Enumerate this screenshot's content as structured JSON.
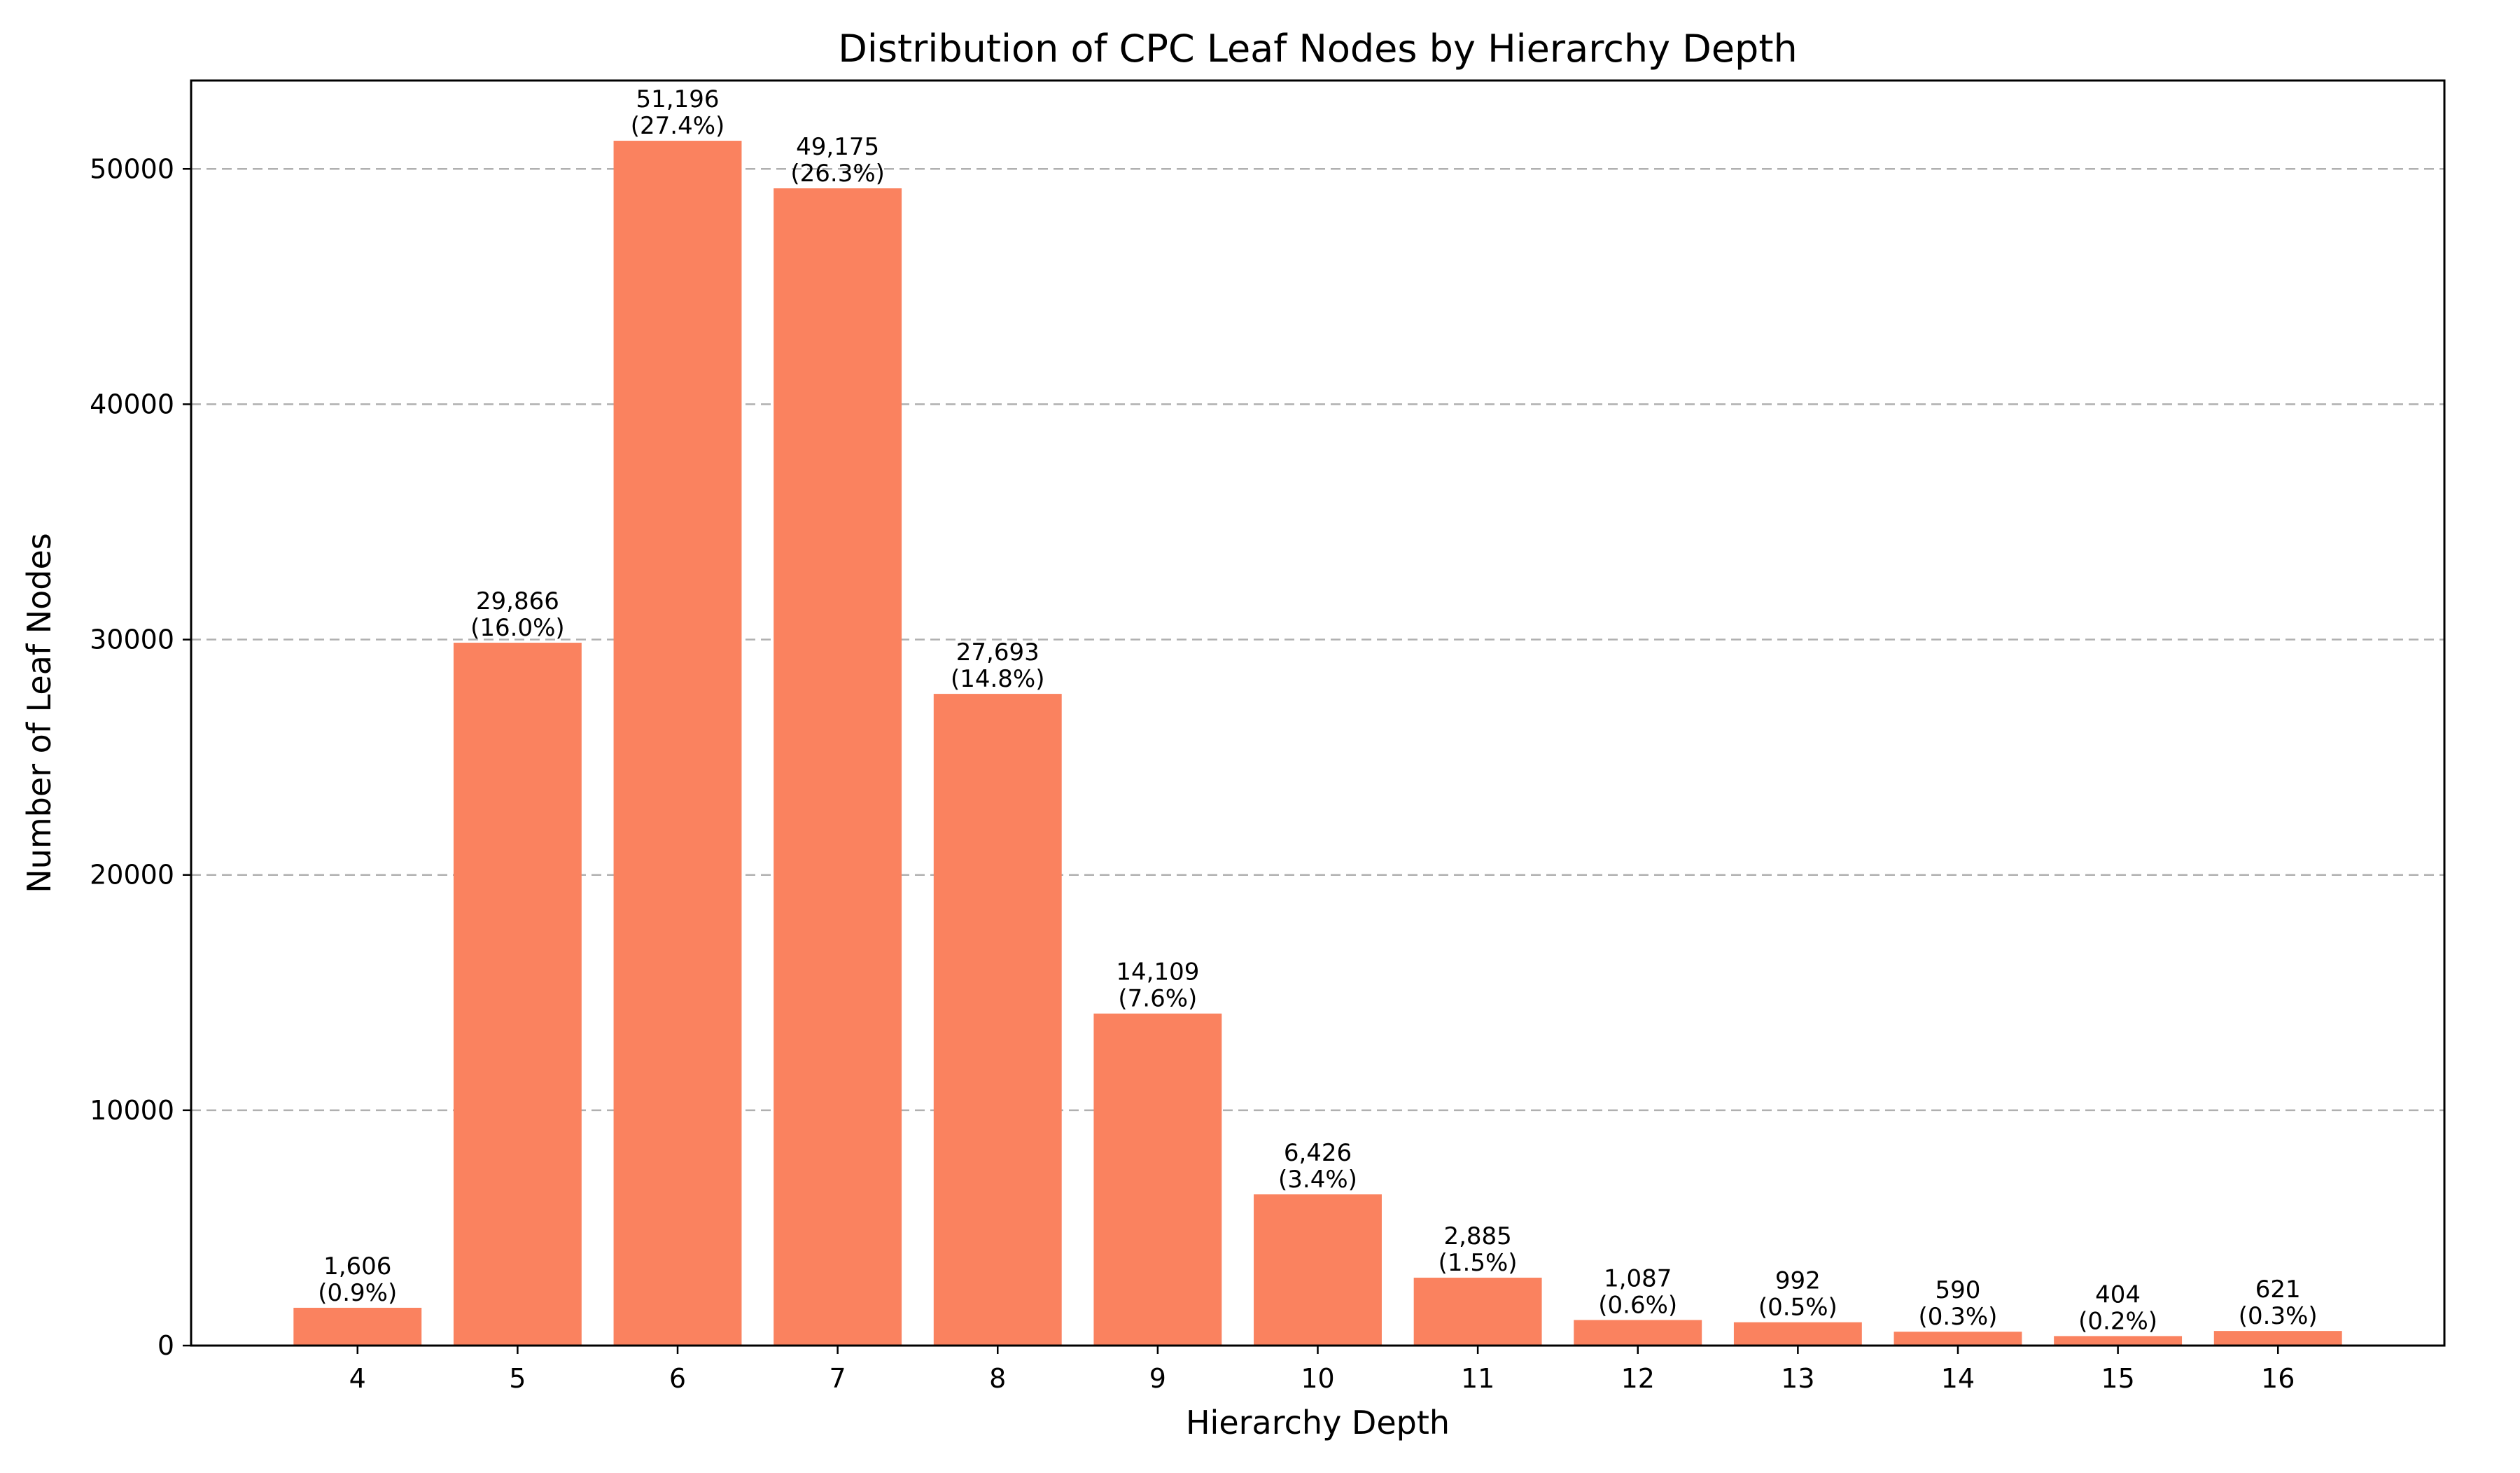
{
  "chart_data": {
    "type": "bar",
    "title": "Distribution of CPC Leaf Nodes by Hierarchy Depth",
    "xlabel": "Hierarchy Depth",
    "ylabel": "Number of Leaf Nodes",
    "categories": [
      "4",
      "5",
      "6",
      "7",
      "8",
      "9",
      "10",
      "11",
      "12",
      "13",
      "14",
      "15",
      "16"
    ],
    "values": [
      1606,
      29866,
      51196,
      49175,
      27693,
      14109,
      6426,
      2885,
      1087,
      992,
      590,
      404,
      621
    ],
    "value_labels": [
      "1,606",
      "29,866",
      "51,196",
      "49,175",
      "27,693",
      "14,109",
      "6,426",
      "2,885",
      "1,087",
      "992",
      "590",
      "404",
      "621"
    ],
    "percent_labels": [
      "(0.9%)",
      "(16.0%)",
      "(27.4%)",
      "(26.3%)",
      "(14.8%)",
      "(7.6%)",
      "(3.4%)",
      "(1.5%)",
      "(0.6%)",
      "(0.5%)",
      "(0.3%)",
      "(0.2%)",
      "(0.3%)"
    ],
    "yticks": [
      0,
      10000,
      20000,
      30000,
      40000,
      50000
    ],
    "ytick_labels": [
      "0",
      "10000",
      "20000",
      "30000",
      "40000",
      "50000"
    ],
    "ylim": [
      0,
      53756
    ],
    "xlim": [
      2.96,
      17.04
    ],
    "grid": "y-dashed",
    "bar_color": "#fa825f"
  }
}
